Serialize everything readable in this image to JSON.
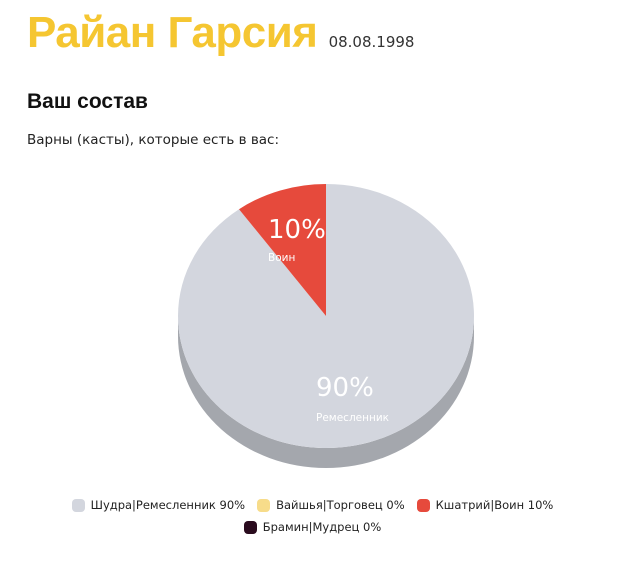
{
  "header": {
    "name": "Райан Гарсия",
    "dob": "08.08.1998"
  },
  "section": {
    "title": "Ваш состав",
    "subtitle": "Варны (касты), которые есть в вас:"
  },
  "chart_data": {
    "type": "pie",
    "title": "",
    "slices": [
      {
        "name": "Шудра",
        "role": "Ремесленник",
        "value": 90,
        "color": "#d3d6de",
        "side_color": "#a4a7ad"
      },
      {
        "name": "Вайшья",
        "role": "Торговец",
        "value": 0,
        "color": "#f7dc8a"
      },
      {
        "name": "Кшатрий",
        "role": "Воин",
        "value": 10,
        "color": "#e64a3c",
        "side_color": "#b23428"
      },
      {
        "name": "Брамин",
        "role": "Мудрец",
        "value": 0,
        "color": "#2a0b1e"
      }
    ],
    "data_labels": [
      {
        "value": "90%",
        "role": "Ремесленник"
      },
      {
        "value": "10%",
        "role": "Воин"
      }
    ],
    "legend": [
      {
        "label": "Шудра|Ремесленник 90%",
        "color": "#d3d6de"
      },
      {
        "label": "Вайшья|Торговец 0%",
        "color": "#f7dc8a"
      },
      {
        "label": "Кшатрий|Воин 10%",
        "color": "#e64a3c"
      },
      {
        "label": "Брамин|Мудрец 0%",
        "color": "#2a0b1e"
      }
    ],
    "legend_placement": "bottom"
  }
}
